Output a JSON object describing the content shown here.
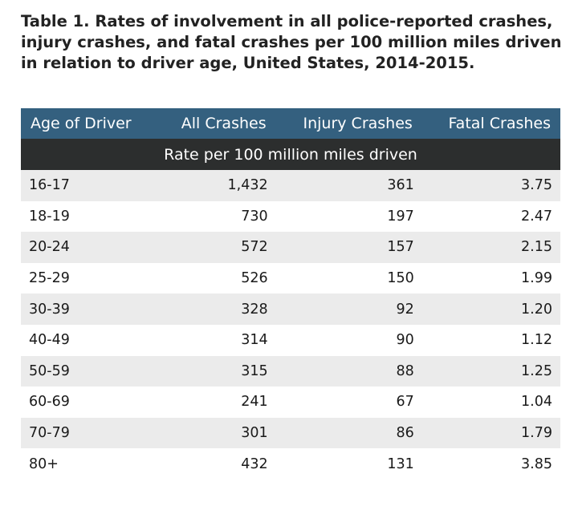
{
  "title": "Table 1. Rates of involvement in all police-reported crashes, injury crashes, and fatal crashes per 100 million miles driven in relation to driver age, United States, 2014-2015.",
  "headers": [
    "Age of Driver",
    "All Crashes",
    "Injury Crashes",
    "Fatal Crashes"
  ],
  "subheader": "Rate per 100 million miles driven",
  "rows": [
    [
      "16-17",
      "1,432",
      "361",
      "3.75"
    ],
    [
      "18-19",
      "730",
      "197",
      "2.47"
    ],
    [
      "20-24",
      "572",
      "157",
      "2.15"
    ],
    [
      "25-29",
      "526",
      "150",
      "1.99"
    ],
    [
      "30-39",
      "328",
      "92",
      "1.20"
    ],
    [
      "40-49",
      "314",
      "90",
      "1.12"
    ],
    [
      "50-59",
      "315",
      "88",
      "1.25"
    ],
    [
      "60-69",
      "241",
      "67",
      "1.04"
    ],
    [
      "70-79",
      "301",
      "86",
      "1.79"
    ],
    [
      "80+",
      "432",
      "131",
      "3.85"
    ]
  ],
  "colors": {
    "header": "#34607f",
    "subheader": "#2c2e2e",
    "stripe": "#ebebeb"
  }
}
